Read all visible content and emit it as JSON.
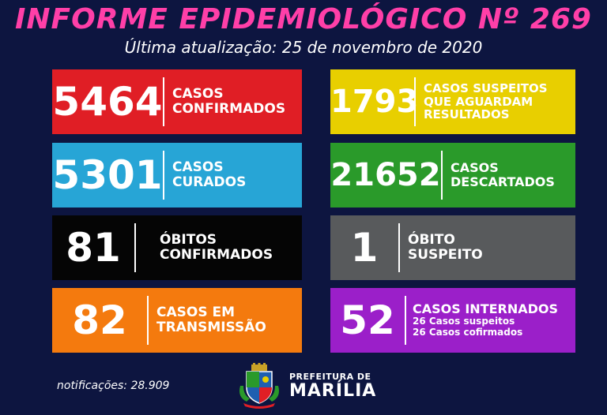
{
  "header": {
    "title": "INFORME EPIDEMIOLÓGICO Nº 269",
    "subtitle": "Última atualização: 25 de novembro de 2020"
  },
  "cards": {
    "confirmed": {
      "value": "5464",
      "line1": "CASOS",
      "line2": "CONFIRMADOS",
      "color": "#e01e25"
    },
    "suspected": {
      "value": "1793",
      "line1": "CASOS SUSPEITOS",
      "line2": "QUE AGUARDAM",
      "line3": "RESULTADOS",
      "color": "#e8cf00"
    },
    "cured": {
      "value": "5301",
      "line1": "CASOS",
      "line2": "CURADOS",
      "color": "#27a5d6"
    },
    "discarded": {
      "value": "21652",
      "line1": "CASOS",
      "line2": "DESCARTADOS",
      "color": "#2a9a2a"
    },
    "deaths": {
      "value": "81",
      "line1": "ÓBITOS",
      "line2": "CONFIRMADOS",
      "color": "#050505"
    },
    "suspect_death": {
      "value": "1",
      "line1": "ÓBITO",
      "line2": "SUSPEITO",
      "color": "#585a5c"
    },
    "transmission": {
      "value": "82",
      "line1": "CASOS EM",
      "line2": "TRANSMISSÃO",
      "color": "#f47a0e"
    },
    "hospitalized": {
      "value": "52",
      "line1": "CASOS INTERNADOS",
      "line2": "26 Casos suspeitos",
      "line3": "26 Casos cofirmados",
      "color": "#9b1fc9"
    }
  },
  "footer": {
    "notifications": "notificações: 28.909",
    "logo_line1": "PREFEITURA DE",
    "logo_line2": "MARÍLIA"
  }
}
